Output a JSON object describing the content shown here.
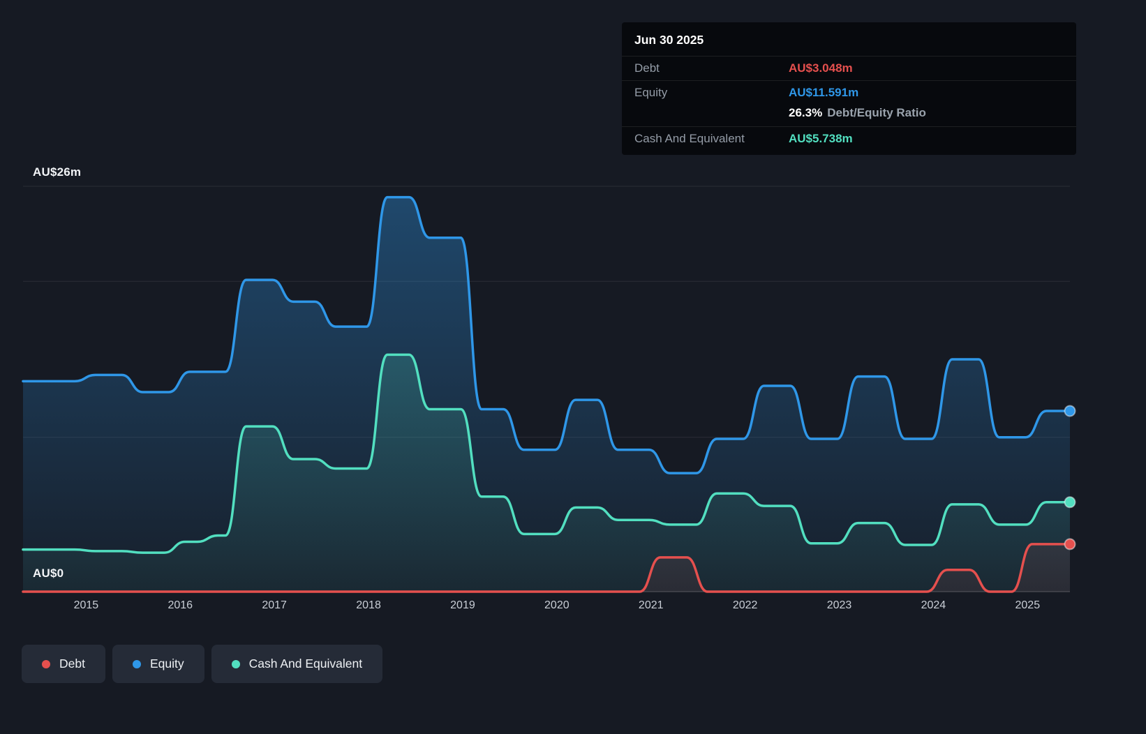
{
  "tooltip": {
    "date": "Jun 30 2025",
    "debt_label": "Debt",
    "debt_value": "AU$3.048m",
    "equity_label": "Equity",
    "equity_value": "AU$11.591m",
    "ratio_value": "26.3%",
    "ratio_label": "Debt/Equity Ratio",
    "cash_label": "Cash And Equivalent",
    "cash_value": "AU$5.738m"
  },
  "axis": {
    "y_top": "AU$26m",
    "y_bottom": "AU$0"
  },
  "legend": [
    {
      "label": "Debt",
      "color": "#e5504e"
    },
    {
      "label": "Equity",
      "color": "#2f97e8"
    },
    {
      "label": "Cash And Equivalent",
      "color": "#52dfc0"
    }
  ],
  "colors": {
    "debt": "#e5504e",
    "equity": "#2f97e8",
    "cash": "#52dfc0",
    "background": "#161a23",
    "tooltip_background": "#07090d"
  },
  "chart_data": {
    "type": "area",
    "x_range": [
      2014.33,
      2025.45
    ],
    "ylim": [
      0,
      26
    ],
    "y_unit": "AU$m",
    "x_ticks": [
      "2015",
      "2016",
      "2017",
      "2018",
      "2019",
      "2020",
      "2021",
      "2022",
      "2023",
      "2024",
      "2025"
    ],
    "gridline_values": [
      26,
      19.9,
      9.9,
      0
    ],
    "step_width": 0.22,
    "legend_position": "bottom",
    "series": [
      {
        "name": "Equity",
        "color": "#2f97e8",
        "final_value": 11.591,
        "points": [
          [
            2014.33,
            13.5
          ],
          [
            2015.1,
            13.9
          ],
          [
            2015.6,
            12.8
          ],
          [
            2016.1,
            14.1
          ],
          [
            2016.7,
            20.0
          ],
          [
            2017.2,
            18.6
          ],
          [
            2017.65,
            17.0
          ],
          [
            2018.2,
            25.3
          ],
          [
            2018.65,
            22.7
          ],
          [
            2019.2,
            11.7
          ],
          [
            2019.65,
            9.1
          ],
          [
            2020.2,
            12.3
          ],
          [
            2020.65,
            9.1
          ],
          [
            2021.2,
            7.6
          ],
          [
            2021.7,
            9.8
          ],
          [
            2022.2,
            13.2
          ],
          [
            2022.7,
            9.8
          ],
          [
            2023.2,
            13.8
          ],
          [
            2023.7,
            9.8
          ],
          [
            2024.2,
            14.9
          ],
          [
            2024.7,
            9.9
          ],
          [
            2025.2,
            11.591
          ]
        ]
      },
      {
        "name": "Cash And Equivalent",
        "color": "#52dfc0",
        "final_value": 5.738,
        "points": [
          [
            2014.33,
            2.7
          ],
          [
            2015.1,
            2.6
          ],
          [
            2015.6,
            2.5
          ],
          [
            2016.05,
            3.2
          ],
          [
            2016.4,
            3.6
          ],
          [
            2016.7,
            10.6
          ],
          [
            2017.2,
            8.5
          ],
          [
            2017.65,
            7.9
          ],
          [
            2018.2,
            15.2
          ],
          [
            2018.65,
            11.7
          ],
          [
            2019.2,
            6.1
          ],
          [
            2019.65,
            3.7
          ],
          [
            2020.2,
            5.4
          ],
          [
            2020.65,
            4.6
          ],
          [
            2021.2,
            4.3
          ],
          [
            2021.7,
            6.3
          ],
          [
            2022.2,
            5.5
          ],
          [
            2022.7,
            3.1
          ],
          [
            2023.2,
            4.4
          ],
          [
            2023.7,
            3.0
          ],
          [
            2024.2,
            5.6
          ],
          [
            2024.7,
            4.3
          ],
          [
            2025.2,
            5.738
          ]
        ]
      },
      {
        "name": "Debt",
        "color": "#e5504e",
        "final_value": 3.048,
        "points": [
          [
            2014.33,
            0
          ],
          [
            2021.1,
            2.2
          ],
          [
            2021.6,
            0
          ],
          [
            2024.15,
            1.4
          ],
          [
            2024.6,
            0
          ],
          [
            2025.05,
            3.048
          ]
        ]
      }
    ]
  }
}
